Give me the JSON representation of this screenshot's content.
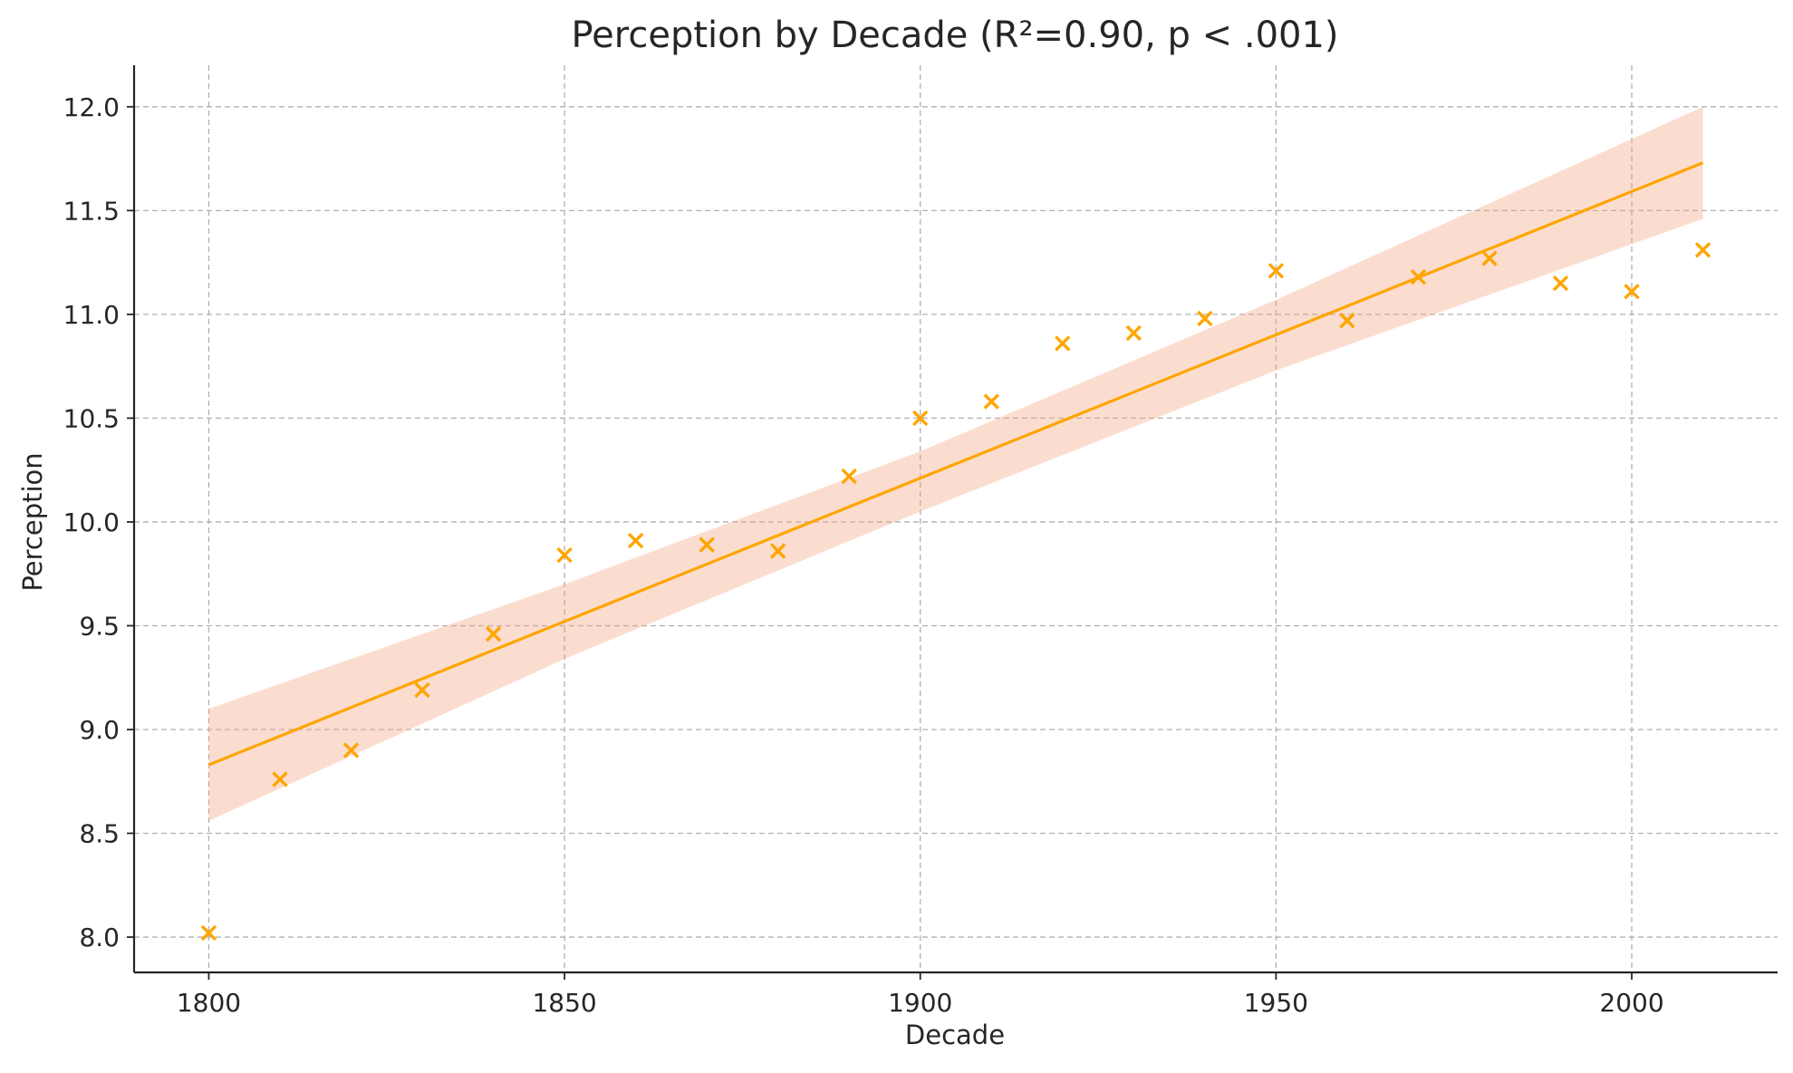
{
  "chart_data": {
    "type": "scatter",
    "title": "Perception by Decade (R²=0.90, p < .001)",
    "xlabel": "Decade",
    "ylabel": "Perception",
    "xlim": [
      1789.5,
      2020.5
    ],
    "ylim": [
      7.83,
      12.2
    ],
    "xticks": [
      1800,
      1850,
      1900,
      1950,
      2000
    ],
    "yticks": [
      8.0,
      8.5,
      9.0,
      9.5,
      10.0,
      10.5,
      11.0,
      11.5,
      12.0
    ],
    "ytick_labels": [
      "8.0",
      "8.5",
      "9.0",
      "9.5",
      "10.0",
      "10.5",
      "11.0",
      "11.5",
      "12.0"
    ],
    "grid": true,
    "marker": "x",
    "colors": {
      "points": "#FFA500",
      "fit_line": "#FFA500",
      "confidence_band": "#F4A582"
    },
    "series": [
      {
        "x": [
          1800,
          1810,
          1820,
          1830,
          1840,
          1850,
          1860,
          1870,
          1880,
          1890,
          1900,
          1910,
          1920,
          1930,
          1940,
          1950,
          1960,
          1970,
          1980,
          1990,
          2000,
          2010
        ],
        "y": [
          8.02,
          8.76,
          8.9,
          9.19,
          9.46,
          9.84,
          9.91,
          9.89,
          9.86,
          10.22,
          10.5,
          10.58,
          10.86,
          10.91,
          10.98,
          11.21,
          10.97,
          11.18,
          11.27,
          11.15,
          11.11,
          11.31
        ]
      }
    ],
    "fit_line": {
      "x": [
        1800,
        2010
      ],
      "y": [
        8.83,
        11.73
      ]
    },
    "confidence_band": {
      "x": [
        1800,
        1850,
        1900,
        1950,
        2010
      ],
      "lower": [
        8.56,
        9.34,
        10.05,
        10.73,
        11.46
      ],
      "upper": [
        9.1,
        9.7,
        10.34,
        11.07,
        12.0
      ]
    }
  }
}
